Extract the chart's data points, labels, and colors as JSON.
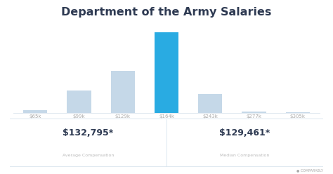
{
  "title": "Department of the Army Salaries",
  "categories": [
    "$65k",
    "$99k",
    "$129k",
    "$164k",
    "$243k",
    "$277k",
    "$305k"
  ],
  "values": [
    4,
    28,
    52,
    100,
    24,
    2,
    1
  ],
  "highlight_index": 3,
  "bar_color": "#c5d8e8",
  "highlight_color": "#29abe2",
  "avg_label": "$132,795*",
  "avg_sublabel": "Average Compensation",
  "med_label": "$129,461*",
  "med_sublabel": "Median Compensation",
  "title_color": "#2e3a52",
  "label_color": "#aaaaaa",
  "bg_color": "#ffffff",
  "box_border_color": "#d8e4ee",
  "stat_color": "#2e3a52",
  "stat_sub_color": "#bbbbbb",
  "comparably_color": "#aaaaaa"
}
